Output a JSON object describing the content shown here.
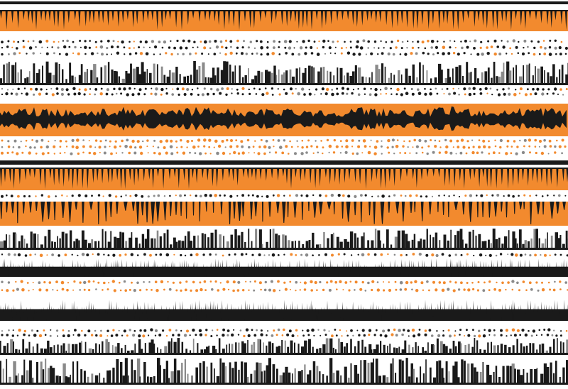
{
  "artwork": {
    "kind": "abstract striped waveform pattern",
    "palette": {
      "orange": "#f28a2e",
      "dark_orange": "#e0701a",
      "black": "#1a1a1a",
      "gray": "#8a8a8a",
      "light_gray": "#bdbdbd",
      "background": "#ffffff"
    },
    "bands": [
      {
        "style": "thin-line",
        "color": "black"
      },
      {
        "style": "spikes-down",
        "color": "orange",
        "mark": "black"
      },
      {
        "style": "dots",
        "color": "black"
      },
      {
        "style": "bars-up",
        "color": "black"
      },
      {
        "style": "dots",
        "color": "black"
      },
      {
        "style": "waveform-on-fill",
        "color": "orange",
        "mark": "black"
      },
      {
        "style": "dots",
        "color": "orange"
      },
      {
        "style": "thin-line",
        "color": "black"
      },
      {
        "style": "spikes-down",
        "color": "orange",
        "mark": "black"
      },
      {
        "style": "dots",
        "color": "black"
      },
      {
        "style": "drips-on-fill",
        "color": "orange",
        "mark": "black"
      },
      {
        "style": "bars-up",
        "color": "black"
      },
      {
        "style": "dots",
        "color": "black"
      },
      {
        "style": "dense-bars",
        "color": "black"
      },
      {
        "style": "dots",
        "color": "orange"
      },
      {
        "style": "dense-bars",
        "color": "black"
      },
      {
        "style": "dots",
        "color": "black"
      },
      {
        "style": "bars-up",
        "color": "black"
      },
      {
        "style": "bars-up",
        "color": "black"
      }
    ]
  }
}
